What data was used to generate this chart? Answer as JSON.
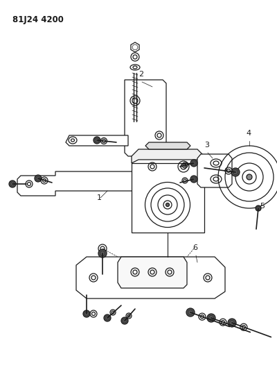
{
  "title": "81J24 4200",
  "background_color": "#ffffff",
  "line_color": "#1a1a1a",
  "fig_width": 4.0,
  "fig_height": 5.33,
  "dpi": 100
}
